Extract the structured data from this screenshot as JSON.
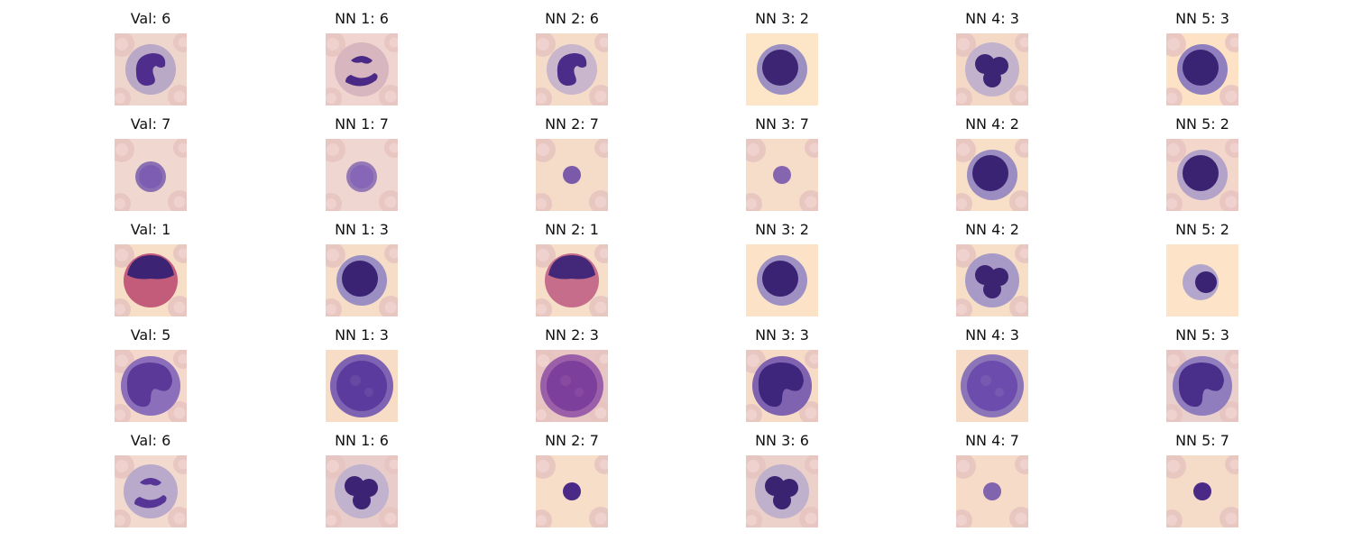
{
  "grid": {
    "rows": [
      {
        "cells": [
          {
            "title": "Val: 6",
            "bg": "#efd6cd",
            "cyto": "#b9a8c6",
            "nuc": "#4e2d8d",
            "shape": "kidney",
            "rbc": true
          },
          {
            "title": "NN 1: 6",
            "bg": "#f0d4cf",
            "cyto": "#d8b6bf",
            "nuc": "#4a2a86",
            "shape": "band",
            "rbc": true
          },
          {
            "title": "NN 2: 6",
            "bg": "#f5dcc8",
            "cyto": "#c9b6cc",
            "nuc": "#4b2c88",
            "shape": "kidney",
            "rbc": true
          },
          {
            "title": "NN 3: 2",
            "bg": "#fde5c8",
            "cyto": "#9c90c3",
            "nuc": "#3d2574",
            "shape": "round",
            "rbc": false
          },
          {
            "title": "NN 4: 3",
            "bg": "#f4dac6",
            "cyto": "#c2b2cc",
            "nuc": "#3c2574",
            "shape": "lobed",
            "rbc": true
          },
          {
            "title": "NN 5: 3",
            "bg": "#fde2c6",
            "cyto": "#8f7fbf",
            "nuc": "#392373",
            "shape": "round",
            "rbc": true
          }
        ]
      },
      {
        "cells": [
          {
            "title": "Val: 7",
            "bg": "#f0d8d0",
            "cyto": "#8a6fb3",
            "nuc": "#7a5bb0",
            "shape": "small",
            "rbc": true
          },
          {
            "title": "NN 1: 7",
            "bg": "#efd6d0",
            "cyto": "#9578b6",
            "nuc": "#8463b6",
            "shape": "small",
            "rbc": true
          },
          {
            "title": "NN 2: 7",
            "bg": "#f4dcc8",
            "cyto": "#8565b0",
            "nuc": "#7a5aa9",
            "shape": "tiny",
            "rbc": true
          },
          {
            "title": "NN 3: 7",
            "bg": "#f5ddc9",
            "cyto": "#8e6db3",
            "nuc": "#8564b0",
            "shape": "tiny",
            "rbc": true
          },
          {
            "title": "NN 4: 2",
            "bg": "#f7dfc8",
            "cyto": "#9b8cc1",
            "nuc": "#3a2373",
            "shape": "round",
            "rbc": true
          },
          {
            "title": "NN 5: 2",
            "bg": "#f3d7cb",
            "cyto": "#b3a3c8",
            "nuc": "#3b2372",
            "shape": "round",
            "rbc": true
          }
        ]
      },
      {
        "cells": [
          {
            "title": "Val: 1",
            "bg": "#f7dfc7",
            "cyto": "#c35c7b",
            "nuc": "#3d2374",
            "shape": "eos",
            "rbc": true
          },
          {
            "title": "NN 1: 3",
            "bg": "#f5ddc7",
            "cyto": "#9b8ec2",
            "nuc": "#3a2372",
            "shape": "round",
            "rbc": true
          },
          {
            "title": "NN 2: 1",
            "bg": "#f6dec8",
            "cyto": "#c56d8a",
            "nuc": "#432779",
            "shape": "eos",
            "rbc": true
          },
          {
            "title": "NN 3: 2",
            "bg": "#fce3c8",
            "cyto": "#9e90c3",
            "nuc": "#3b2373",
            "shape": "round",
            "rbc": false
          },
          {
            "title": "NN 4: 2",
            "bg": "#f6dec7",
            "cyto": "#a79ac7",
            "nuc": "#3c2473",
            "shape": "lobed",
            "rbc": true
          },
          {
            "title": "NN 5: 2",
            "bg": "#fde4c8",
            "cyto": "#b2a6cd",
            "nuc": "#3a2372",
            "shape": "small-dark",
            "rbc": false
          }
        ]
      },
      {
        "cells": [
          {
            "title": "Val: 5",
            "bg": "#f4d8cc",
            "cyto": "#8b6fba",
            "nuc": "#5a3998",
            "shape": "mono",
            "rbc": true
          },
          {
            "title": "NN 1: 3",
            "bg": "#f7dcc6",
            "cyto": "#7e63b3",
            "nuc": "#5b3b9d",
            "shape": "large",
            "rbc": false
          },
          {
            "title": "NN 2: 3",
            "bg": "#e8c6c3",
            "cyto": "#9a5fa8",
            "nuc": "#7d3f9c",
            "shape": "large",
            "rbc": true
          },
          {
            "title": "NN 3: 3",
            "bg": "#f6dcc7",
            "cyto": "#7f63b1",
            "nuc": "#3f267d",
            "shape": "mono",
            "rbc": true
          },
          {
            "title": "NN 4: 3",
            "bg": "#f6dcc6",
            "cyto": "#8c74b9",
            "nuc": "#6c4cac",
            "shape": "large",
            "rbc": false
          },
          {
            "title": "NN 5: 3",
            "bg": "#e9d0cc",
            "cyto": "#8f7dbd",
            "nuc": "#4a2f8a",
            "shape": "mono",
            "rbc": true
          }
        ]
      },
      {
        "cells": [
          {
            "title": "Val: 6",
            "bg": "#f2dace",
            "cyto": "#b9aacb",
            "nuc": "#573597",
            "shape": "band",
            "rbc": true
          },
          {
            "title": "NN 1: 6",
            "bg": "#e9cdca",
            "cyto": "#c1b2cd",
            "nuc": "#3c2373",
            "shape": "lobed",
            "rbc": true
          },
          {
            "title": "NN 2: 7",
            "bg": "#f6dec8",
            "cyto": "#4a2a86",
            "nuc": "#4a2a86",
            "shape": "tiny",
            "rbc": true
          },
          {
            "title": "NN 3: 6",
            "bg": "#ecd0ca",
            "cyto": "#bfb0cb",
            "nuc": "#3a2370",
            "shape": "lobed",
            "rbc": true
          },
          {
            "title": "NN 4: 7",
            "bg": "#f6dcc8",
            "cyto": "#8968b0",
            "nuc": "#8164ae",
            "shape": "tiny",
            "rbc": true
          },
          {
            "title": "NN 5: 7",
            "bg": "#f5dcc8",
            "cyto": "#4a2a86",
            "nuc": "#4a2a86",
            "shape": "tiny",
            "rbc": true
          }
        ]
      }
    ]
  }
}
